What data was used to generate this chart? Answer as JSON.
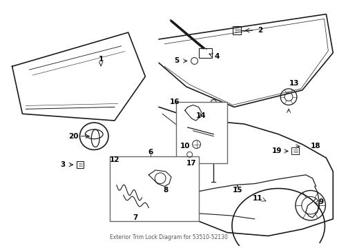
{
  "background_color": "#ffffff",
  "line_color": "#1a1a1a",
  "box_color": "#555555",
  "label_color": "#000000",
  "fig_width": 4.89,
  "fig_height": 3.6,
  "dpi": 100,
  "subtitle": "Exterior Trim Lock Diagram for 53510-52130"
}
